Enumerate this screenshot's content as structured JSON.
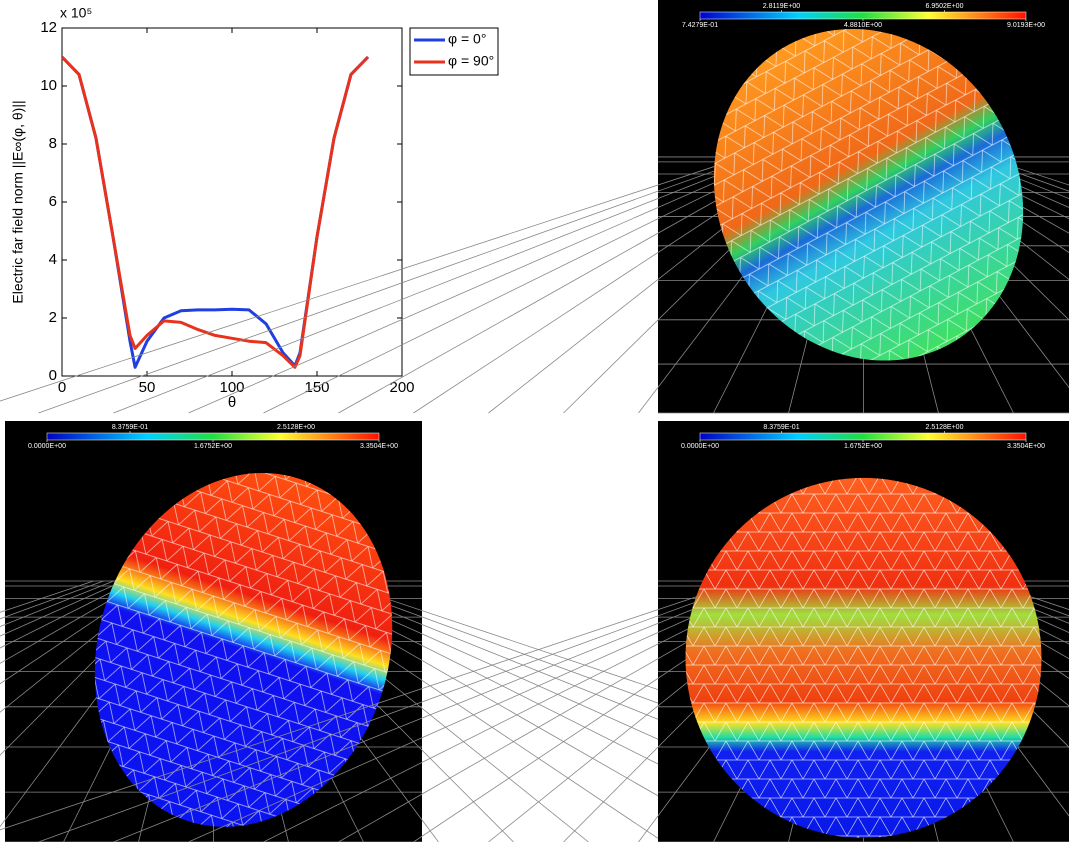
{
  "chart_data": {
    "type": "line",
    "ylabel": "Electric far field norm ||E∞(φ, θ)||",
    "xlabel": "θ",
    "y_offset_label": "x 10⁵",
    "x": [
      0,
      10,
      20,
      30,
      40,
      43,
      50,
      60,
      70,
      80,
      90,
      100,
      110,
      120,
      130,
      137,
      140,
      150,
      160,
      170,
      180
    ],
    "series": [
      {
        "name": "φ = 0°",
        "color": "#1f3fe0",
        "values": [
          11,
          10.4,
          8.2,
          4.8,
          1.2,
          0.3,
          1.2,
          2.0,
          2.25,
          2.28,
          2.28,
          2.3,
          2.28,
          1.8,
          0.8,
          0.35,
          0.8,
          4.8,
          8.2,
          10.4,
          11
        ]
      },
      {
        "name": "φ = 90°",
        "color": "#e8321c",
        "values": [
          11,
          10.4,
          8.2,
          4.8,
          1.4,
          0.95,
          1.4,
          1.9,
          1.85,
          1.6,
          1.4,
          1.3,
          1.2,
          1.15,
          0.7,
          0.3,
          0.7,
          4.8,
          8.2,
          10.4,
          11
        ]
      }
    ],
    "xlim": [
      0,
      200
    ],
    "xticks": [
      0,
      50,
      100,
      150,
      200
    ],
    "ylim": [
      0,
      12
    ],
    "yticks": [
      0,
      2,
      4,
      6,
      8,
      10,
      12
    ],
    "legend": "outside-top-right"
  },
  "renders": [
    {
      "clim": [
        0.74279,
        9.0193
      ],
      "colorbar_ticks": [
        {
          "value": 0.74279,
          "label": "7.4279E-01"
        },
        {
          "value": 2.8119,
          "label": "2.8119E+00"
        },
        {
          "value": 4.881,
          "label": "4.8810E+00"
        },
        {
          "value": 6.9502,
          "label": "6.9502E+00"
        },
        {
          "value": 9.0193,
          "label": "9.0193E+00"
        }
      ]
    },
    {
      "clim": [
        0,
        3.3504
      ],
      "colorbar_ticks": [
        {
          "value": 0,
          "label": "0.0000E+00"
        },
        {
          "value": 0.83759,
          "label": "8.3759E-01"
        },
        {
          "value": 1.6752,
          "label": "1.6752E+00"
        },
        {
          "value": 2.5128,
          "label": "2.5128E+00"
        },
        {
          "value": 3.3504,
          "label": "3.3504E+00"
        }
      ]
    },
    {
      "clim": [
        0,
        3.3504
      ],
      "colorbar_ticks": [
        {
          "value": 0,
          "label": "0.0000E+00"
        },
        {
          "value": 0.83759,
          "label": "8.3759E-01"
        },
        {
          "value": 1.6752,
          "label": "1.6752E+00"
        },
        {
          "value": 2.5128,
          "label": "2.5128E+00"
        },
        {
          "value": 3.3504,
          "label": "3.3504E+00"
        }
      ]
    }
  ]
}
